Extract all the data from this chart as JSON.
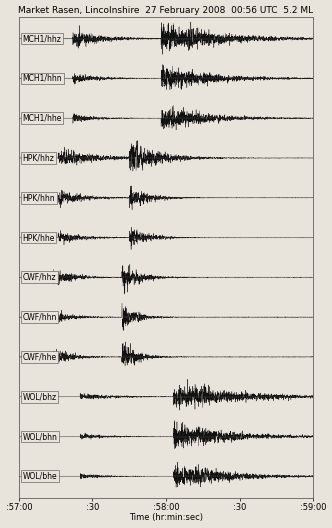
{
  "title": "Market Rasen, Lincolnshire  27 February 2008  00:56 UTC  5.2 ML",
  "channels": [
    "MCH1/hhz",
    "MCH1/hhn",
    "MCH1/hhe",
    "HPK/hhz",
    "HPK/hhn",
    "HPK/hhe",
    "CWF/hhz",
    "CWF/hhn",
    "CWF/hhe",
    "WOL/bhz",
    "WOL/bhn",
    "WOL/bhe"
  ],
  "xlabel": "Time (hr:min:sec)",
  "xtick_positions": [
    0,
    30,
    60,
    90,
    120
  ],
  "xtick_labels": [
    ":57:00",
    ":30",
    ":58:00",
    ":30",
    ":59:00"
  ],
  "duration": 120,
  "background_color": "#e8e4dc",
  "line_color": "#111111",
  "title_fontsize": 6.5,
  "label_fontsize": 5.5,
  "axis_fontsize": 6.0,
  "seed": 42,
  "channel_params": [
    {
      "p": 22,
      "s": 58,
      "noise": 0.012,
      "p_amp": 0.55,
      "s_amp": 1.0,
      "p_decay": 12,
      "s_decay": 18,
      "coda_amp": 0.45,
      "coda_decay": 25,
      "scale": 0.42
    },
    {
      "p": 22,
      "s": 58,
      "noise": 0.008,
      "p_amp": 0.35,
      "s_amp": 0.85,
      "p_decay": 10,
      "s_decay": 16,
      "coda_amp": 0.35,
      "coda_decay": 22,
      "scale": 0.35
    },
    {
      "p": 22,
      "s": 58,
      "noise": 0.006,
      "p_amp": 0.28,
      "s_amp": 0.75,
      "p_decay": 9,
      "s_decay": 15,
      "coda_amp": 0.3,
      "coda_decay": 20,
      "scale": 0.32
    },
    {
      "p": 16,
      "s": 45,
      "noise": 0.018,
      "p_amp": 0.9,
      "s_amp": 1.6,
      "p_decay": 16,
      "s_decay": 12,
      "coda_amp": 0.25,
      "coda_decay": 10,
      "scale": 0.44
    },
    {
      "p": 16,
      "s": 45,
      "noise": 0.012,
      "p_amp": 0.5,
      "s_amp": 0.8,
      "p_decay": 10,
      "s_decay": 8,
      "coda_amp": 0.15,
      "coda_decay": 8,
      "scale": 0.3
    },
    {
      "p": 16,
      "s": 45,
      "noise": 0.012,
      "p_amp": 0.55,
      "s_amp": 0.85,
      "p_decay": 10,
      "s_decay": 8,
      "coda_amp": 0.15,
      "coda_decay": 8,
      "scale": 0.3
    },
    {
      "p": 14,
      "s": 42,
      "noise": 0.022,
      "p_amp": 0.85,
      "s_amp": 1.4,
      "p_decay": 8,
      "s_decay": 7,
      "coda_amp": 0.08,
      "coda_decay": 5,
      "scale": 0.42
    },
    {
      "p": 14,
      "s": 42,
      "noise": 0.018,
      "p_amp": 0.6,
      "s_amp": 1.0,
      "p_decay": 7,
      "s_decay": 6,
      "coda_amp": 0.06,
      "coda_decay": 4,
      "scale": 0.35
    },
    {
      "p": 14,
      "s": 42,
      "noise": 0.018,
      "p_amp": 0.7,
      "s_amp": 1.2,
      "p_decay": 7,
      "s_decay": 6,
      "coda_amp": 0.06,
      "coda_decay": 4,
      "scale": 0.38
    },
    {
      "p": 25,
      "s": 63,
      "noise": 0.008,
      "p_amp": 0.45,
      "s_amp": 1.8,
      "p_decay": 14,
      "s_decay": 22,
      "coda_amp": 0.55,
      "coda_decay": 30,
      "scale": 0.44
    },
    {
      "p": 25,
      "s": 63,
      "noise": 0.006,
      "p_amp": 0.3,
      "s_amp": 1.4,
      "p_decay": 12,
      "s_decay": 20,
      "coda_amp": 0.45,
      "coda_decay": 28,
      "scale": 0.4
    },
    {
      "p": 25,
      "s": 63,
      "noise": 0.005,
      "p_amp": 0.25,
      "s_amp": 1.2,
      "p_decay": 10,
      "s_decay": 18,
      "coda_amp": 0.4,
      "coda_decay": 26,
      "scale": 0.36
    }
  ]
}
